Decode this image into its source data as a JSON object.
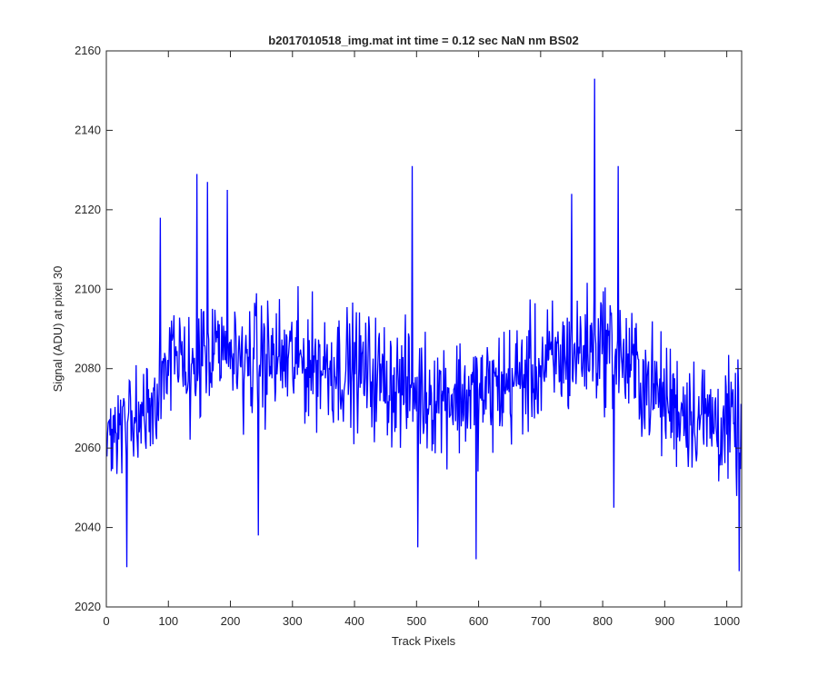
{
  "chart_data": {
    "type": "line",
    "title": "b2017010518_img.mat int time = 0.12 sec  NaN nm BS02",
    "xlabel": "Track Pixels",
    "ylabel": "Signal (ADU) at pixel 30",
    "xlim": [
      0,
      1024
    ],
    "ylim": [
      2020,
      2160
    ],
    "xticks": [
      0,
      100,
      200,
      300,
      400,
      500,
      600,
      700,
      800,
      900,
      1000
    ],
    "yticks": [
      2020,
      2040,
      2060,
      2080,
      2100,
      2120,
      2140,
      2160
    ],
    "grid": false,
    "line_color": "#0000ff",
    "series": [
      {
        "x_start": 1,
        "x_step": 1,
        "peaks": [
          {
            "x": 33,
            "y": 2030
          },
          {
            "x": 87,
            "y": 2118
          },
          {
            "x": 146,
            "y": 2129
          },
          {
            "x": 163,
            "y": 2127
          },
          {
            "x": 195,
            "y": 2125
          },
          {
            "x": 245,
            "y": 2038
          },
          {
            "x": 493,
            "y": 2131
          },
          {
            "x": 502,
            "y": 2035
          },
          {
            "x": 596,
            "y": 2032
          },
          {
            "x": 750,
            "y": 2124
          },
          {
            "x": 787,
            "y": 2153
          },
          {
            "x": 818,
            "y": 2045
          },
          {
            "x": 825,
            "y": 2131
          },
          {
            "x": 1020,
            "y": 2029
          }
        ],
        "trend": [
          {
            "x": 1,
            "y": 2064
          },
          {
            "x": 50,
            "y": 2068
          },
          {
            "x": 100,
            "y": 2080
          },
          {
            "x": 200,
            "y": 2083
          },
          {
            "x": 300,
            "y": 2082
          },
          {
            "x": 400,
            "y": 2080
          },
          {
            "x": 500,
            "y": 2074
          },
          {
            "x": 600,
            "y": 2073
          },
          {
            "x": 700,
            "y": 2080
          },
          {
            "x": 800,
            "y": 2087
          },
          {
            "x": 900,
            "y": 2072
          },
          {
            "x": 1024,
            "y": 2064
          }
        ],
        "spread": 14
      }
    ]
  }
}
